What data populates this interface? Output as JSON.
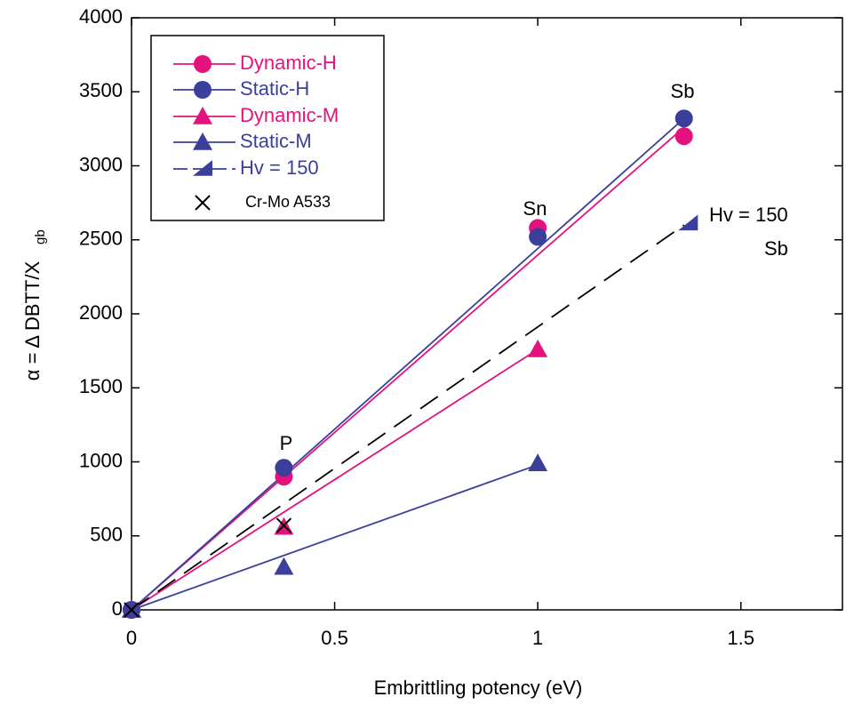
{
  "chart_data": {
    "type": "scatter",
    "x_label": "Embrittling potency (eV)",
    "y_label": "α = Δ DBTT/X",
    "y_label_sub": "gb",
    "xlim": [
      0,
      1.75
    ],
    "xticks": [
      0,
      0.5,
      1,
      1.5
    ],
    "ylim": [
      0,
      4000
    ],
    "yticks": [
      0,
      500,
      1000,
      1500,
      2000,
      2500,
      3000,
      3500,
      4000
    ],
    "series": [
      {
        "name": "Dynamic-H",
        "color": "#e3127c",
        "marker": "circle",
        "line_color": "#e3127c",
        "line_style": "solid",
        "x": [
          0,
          0.375,
          1,
          1.36
        ],
        "values": [
          0,
          900,
          2580,
          3200
        ],
        "fit_x": [
          0,
          1.36
        ],
        "fit_y": [
          0,
          3260
        ]
      },
      {
        "name": "Static-H",
        "color": "#3b3f9c",
        "marker": "circle",
        "line_color": "#3b3f9c",
        "line_style": "solid",
        "x": [
          0,
          0.375,
          1,
          1.36
        ],
        "values": [
          0,
          960,
          2520,
          3320
        ],
        "fit_x": [
          0,
          1.36
        ],
        "fit_y": [
          0,
          3320
        ]
      },
      {
        "name": "Dynamic-M",
        "color": "#e3127c",
        "marker": "triangle",
        "line_color": "#e3127c",
        "line_style": "solid",
        "x": [
          0,
          0.375,
          1
        ],
        "values": [
          0,
          560,
          1760
        ],
        "fit_x": [
          0,
          1
        ],
        "fit_y": [
          0,
          1760
        ]
      },
      {
        "name": "Static-M",
        "color": "#3b3f9c",
        "marker": "triangle",
        "line_color": "#3b3f9c",
        "line_style": "solid",
        "x": [
          0,
          0.375,
          1
        ],
        "values": [
          0,
          290,
          990
        ],
        "fit_x": [
          0,
          1
        ],
        "fit_y": [
          0,
          980
        ]
      },
      {
        "name": "Hv = 150",
        "color": "#3b3f9c",
        "marker": "right-triangle",
        "line_color": "#000000",
        "line_style": "dashed",
        "x": [
          1.37
        ],
        "values": [
          2610
        ],
        "fit_x": [
          0,
          1.36
        ],
        "fit_y": [
          0,
          2600
        ]
      },
      {
        "name": "Cr-Mo A533",
        "color": "#000000",
        "marker": "x",
        "x": [
          0,
          0.375
        ],
        "values": [
          0,
          570
        ]
      }
    ],
    "annotations": [
      "P",
      "Sn",
      "Sb",
      "Hv = 150",
      "Sb"
    ]
  }
}
